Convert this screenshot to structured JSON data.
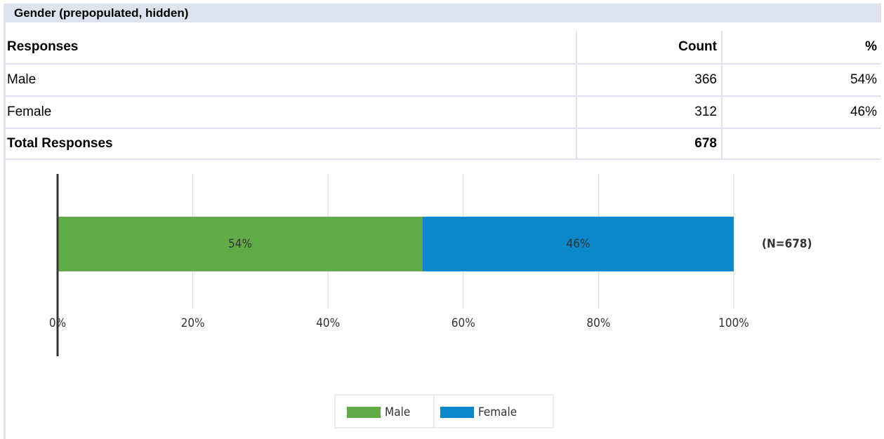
{
  "table": {
    "title": "Gender (prepopulated, hidden)",
    "header": [
      "Responses",
      "Count",
      "%"
    ],
    "rows": [
      [
        "Male",
        "366",
        "54%"
      ],
      [
        "Female",
        "312",
        "46%"
      ]
    ],
    "total": [
      "Total Responses",
      "678"
    ]
  },
  "chart_data": {
    "type": "bar",
    "orientation": "horizontal",
    "stacked": true,
    "categories": [
      null
    ],
    "series": [
      {
        "name": "Male",
        "color": "#62ac47",
        "values": [
          54
        ],
        "value_labels": [
          "54%"
        ]
      },
      {
        "name": "Female",
        "color": "#0b88c9",
        "values": [
          46
        ],
        "value_labels": [
          "46%"
        ]
      }
    ],
    "xlim": [
      0,
      100
    ],
    "xticks": [
      {
        "value": 0,
        "label": "0%"
      },
      {
        "value": 20,
        "label": "20%"
      },
      {
        "value": 40,
        "label": "40%"
      },
      {
        "value": 60,
        "label": "60%"
      },
      {
        "value": 80,
        "label": "80%"
      },
      {
        "value": 100,
        "label": "100%"
      }
    ],
    "grid": true,
    "annotation": "(N=678)",
    "legend": "bottom"
  }
}
